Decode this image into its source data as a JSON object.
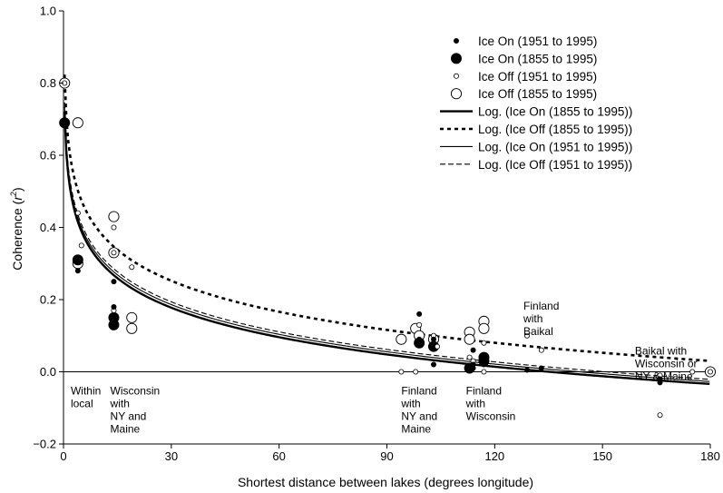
{
  "chart_data": {
    "type": "scatter",
    "title": "",
    "xlabel": "Shortest distance between lakes  (degrees longitude)",
    "ylabel": "Coherence (r²)",
    "ylabel_main": "Coherence (",
    "ylabel_r": "r",
    "ylabel_sup": "2",
    "ylabel_end": ")",
    "xlim": [
      0,
      180
    ],
    "ylim": [
      -0.2,
      1.0
    ],
    "xticks": [
      0,
      30,
      60,
      90,
      120,
      150,
      180
    ],
    "yticks": [
      -0.2,
      0.0,
      0.2,
      0.4,
      0.6,
      0.8,
      1.0
    ],
    "ytick_labels": [
      "−0.2",
      "0.0",
      "0.2",
      "0.4",
      "0.6",
      "0.8",
      "1.0"
    ],
    "grid": false,
    "zero_line": true,
    "legend_position": "top-right",
    "series": [
      {
        "name": "Ice On (1951 to 1995)",
        "marker": "small-filled",
        "points": [
          [
            0.3,
            0.69
          ],
          [
            4,
            0.28
          ],
          [
            14,
            0.25
          ],
          [
            14,
            0.18
          ],
          [
            14,
            0.15
          ],
          [
            99,
            0.16
          ],
          [
            99,
            0.09
          ],
          [
            103,
            0.02
          ],
          [
            103,
            0.09
          ],
          [
            114,
            0.06
          ],
          [
            114,
            0.02
          ],
          [
            114,
            0.01
          ],
          [
            117,
            0.04
          ],
          [
            117,
            0.02
          ],
          [
            129,
            0.005
          ],
          [
            133,
            0.01
          ],
          [
            166,
            -0.02
          ],
          [
            166,
            -0.03
          ]
        ]
      },
      {
        "name": "Ice On (1855 to 1995)",
        "marker": "large-filled",
        "points": [
          [
            0.3,
            0.69
          ],
          [
            4,
            0.31
          ],
          [
            14,
            0.15
          ],
          [
            14,
            0.13
          ],
          [
            99,
            0.08
          ],
          [
            103,
            0.07
          ],
          [
            113,
            0.01
          ],
          [
            117,
            0.04
          ],
          [
            117,
            0.03
          ]
        ]
      },
      {
        "name": "Ice Off (1951 to 1995)",
        "marker": "small-open",
        "points": [
          [
            0.3,
            0.8
          ],
          [
            4,
            0.44
          ],
          [
            5,
            0.35
          ],
          [
            14,
            0.4
          ],
          [
            14,
            0.33
          ],
          [
            14,
            0.17
          ],
          [
            19,
            0.29
          ],
          [
            94,
            0.0
          ],
          [
            98,
            0.0
          ],
          [
            99,
            0.13
          ],
          [
            103,
            0.1
          ],
          [
            104,
            0.07
          ],
          [
            113,
            0.04
          ],
          [
            114,
            0.03
          ],
          [
            117,
            0.08
          ],
          [
            117,
            0.0
          ],
          [
            129,
            0.1
          ],
          [
            133,
            0.06
          ],
          [
            166,
            -0.12
          ],
          [
            166,
            -0.01
          ],
          [
            175,
            0.0
          ],
          [
            180,
            0.0
          ]
        ]
      },
      {
        "name": "Ice Off (1855 to 1995)",
        "marker": "large-open",
        "points": [
          [
            0.3,
            0.8
          ],
          [
            4,
            0.69
          ],
          [
            4,
            0.3
          ],
          [
            14,
            0.43
          ],
          [
            14,
            0.33
          ],
          [
            19,
            0.15
          ],
          [
            19,
            0.12
          ],
          [
            94,
            0.09
          ],
          [
            98,
            0.12
          ],
          [
            99,
            0.1
          ],
          [
            103,
            0.09
          ],
          [
            113,
            0.11
          ],
          [
            113,
            0.09
          ],
          [
            117,
            0.14
          ],
          [
            117,
            0.12
          ],
          [
            180,
            0.0
          ]
        ]
      }
    ],
    "trendlines": [
      {
        "name": "Log. (Ice On (1855 to 1995))",
        "style": "thick-solid",
        "a": 0.579,
        "b": -0.118
      },
      {
        "name": "Log. (Ice Off (1855 to 1995))",
        "style": "dotted",
        "a": 0.674,
        "b": -0.124
      },
      {
        "name": "Log. (Ice On (1951 to 1995))",
        "style": "thin-solid",
        "a": 0.591,
        "b": -0.119
      },
      {
        "name": "Log. (Ice Off (1951 to 1995))",
        "style": "dashed",
        "a": 0.602,
        "b": -0.12
      }
    ],
    "annotations": [
      {
        "lines": [
          "Within",
          "local"
        ],
        "x": 1,
        "y": -0.025,
        "anchor": "start"
      },
      {
        "lines": [
          "Wisconsin",
          "with",
          "NY and",
          "Maine"
        ],
        "x": 12,
        "y": -0.025,
        "anchor": "start"
      },
      {
        "lines": [
          "Finland",
          "with",
          "NY and",
          "Maine"
        ],
        "x": 93,
        "y": -0.025,
        "anchor": "start"
      },
      {
        "lines": [
          "Finland",
          "with",
          "Wisconsin"
        ],
        "x": 111,
        "y": -0.025,
        "anchor": "start"
      },
      {
        "lines": [
          "Finland",
          "with",
          "Baikal"
        ],
        "x": 127,
        "y": 0.21,
        "anchor": "start"
      },
      {
        "lines": [
          "Baikal with",
          "Wisconsin or",
          "NY & Maine"
        ],
        "x": 158,
        "y": 0.085,
        "anchor": "start"
      }
    ]
  }
}
